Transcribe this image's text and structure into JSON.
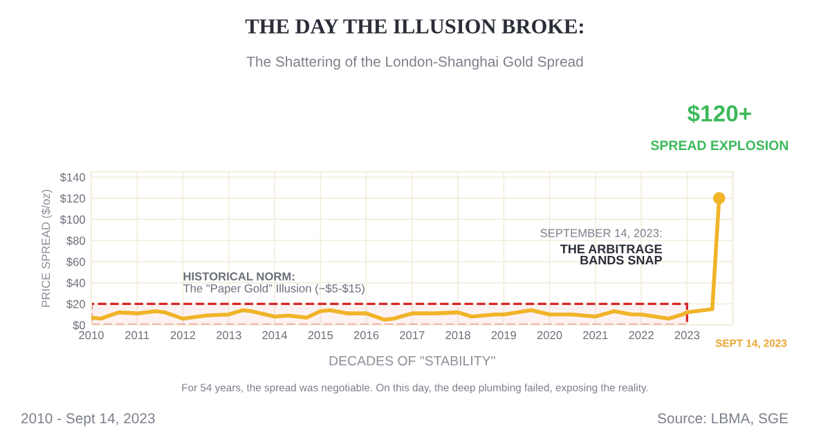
{
  "chart_data": {
    "type": "line",
    "title": "THE DAY THE ILLUSION BROKE:",
    "subtitle": "The Shattering of the London-Shanghai Gold Spread",
    "xlabel": "DECADES OF \"STABILITY\"",
    "ylabel": "PRICE SPREAD ($/oz)",
    "x": [
      2010,
      2010.2,
      2010.6,
      2011,
      2011.4,
      2011.6,
      2012,
      2012.5,
      2013,
      2013.3,
      2013.5,
      2014,
      2014.3,
      2014.7,
      2015,
      2015.2,
      2015.6,
      2016,
      2016.4,
      2016.6,
      2017,
      2017.5,
      2018,
      2018.3,
      2018.8,
      2019,
      2019.6,
      2020,
      2020.5,
      2021,
      2021.4,
      2021.8,
      2022,
      2022.6,
      2022.9,
      2023,
      2023.55,
      2023.7
    ],
    "series": [
      {
        "color": "#f0b429",
        "values": [
          7,
          6,
          12,
          11,
          13,
          12,
          6,
          9,
          10,
          14,
          13,
          8,
          9,
          7,
          13,
          14,
          11,
          11,
          5,
          6,
          11,
          11,
          12,
          8,
          10,
          10,
          14,
          10,
          10,
          8,
          13,
          10,
          10,
          6,
          10,
          12,
          15,
          120
        ]
      },
      {
        "type": "scatter",
        "color": "#f0b429",
        "x": [
          2023.7
        ],
        "values": [
          120
        ]
      }
    ],
    "xlim": [
      2010,
      2024
    ],
    "xticks": [
      2010,
      2011,
      2012,
      2013,
      2014,
      2015,
      2016,
      2017,
      2018,
      2019,
      2020,
      2021,
      2022,
      2023
    ],
    "ylim": [
      0,
      145
    ],
    "yticks": [
      {
        "value": 0,
        "label": "$0"
      },
      {
        "value": 20,
        "label": "$20"
      },
      {
        "value": 40,
        "label": "$40"
      },
      {
        "value": 60,
        "label": "$60"
      },
      {
        "value": 80,
        "label": "$80"
      },
      {
        "value": 100,
        "label": "$100"
      },
      {
        "value": 120,
        "label": "$120"
      },
      {
        "value": 140,
        "label": "$140"
      }
    ],
    "grid": true,
    "line_style": "solid",
    "bands": [
      {
        "axis": "y",
        "from": 0,
        "to": 20,
        "label": "HISTORICAL NORM:\nThe \"Paper Gold\" Illusion (~$5-$15)",
        "color": "#d62728"
      }
    ],
    "annotations": [
      "$120+",
      "SPREAD EXPLOSION",
      "SEPTEMBER 14, 2023:",
      "THE ARBITRAGE\nBANDS SNAP",
      "SEPT 14, 2023",
      "For 54 years, the spread was negotiable. On this day, the deep plumbing failed, exposing the reality.",
      "2010 - Sept 14, 2023",
      "Source: LBMA, SGE"
    ]
  }
}
